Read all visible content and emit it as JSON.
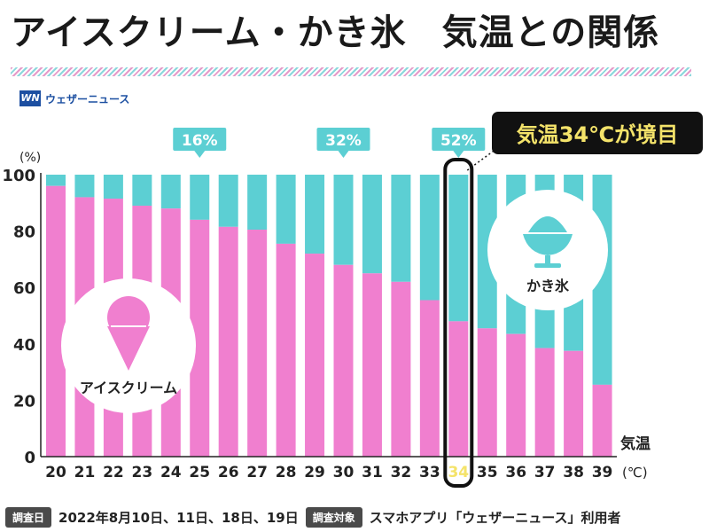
{
  "page": {
    "title_part1": "アイスクリーム・かき氷",
    "title_part2": "気温との関係",
    "logo_mark": "WN",
    "logo_text": "ウェザーニュース",
    "footer": {
      "date_tag": "調査日",
      "date_value": "2022年8月10日、11日、18日、19日",
      "target_tag": "調査対象",
      "target_value": "スマホアプリ「ウェザーニュース」利用者"
    },
    "ice_cream_label": "アイスクリーム",
    "kakigori_label": "かき氷",
    "callout": "気温34℃が境目"
  },
  "chart_data": {
    "type": "bar",
    "stacked": true,
    "categories": [
      "20",
      "21",
      "22",
      "23",
      "24",
      "25",
      "26",
      "27",
      "28",
      "29",
      "30",
      "31",
      "32",
      "33",
      "34",
      "35",
      "36",
      "37",
      "38",
      "39"
    ],
    "series": [
      {
        "name": "アイスクリーム",
        "color": "#f07fcf",
        "values": [
          96,
          92,
          91.5,
          89,
          88,
          84,
          81.5,
          80.5,
          75.5,
          72,
          68,
          65,
          62,
          55.5,
          48,
          45.5,
          43.5,
          38.5,
          37.5,
          25.5
        ]
      },
      {
        "name": "かき氷",
        "color": "#5ccfd3",
        "values": [
          4,
          8,
          8.5,
          11,
          12,
          16,
          18.5,
          19.5,
          24.5,
          28,
          32,
          35,
          38,
          44.5,
          52,
          54.5,
          56.5,
          61.5,
          62.5,
          74.5
        ]
      }
    ],
    "ylim": [
      0,
      100
    ],
    "yticks": [
      0,
      20,
      40,
      60,
      80,
      100
    ],
    "ylabel": "(%)",
    "xlabel_line1": "気温",
    "xlabel_line2": "(℃)",
    "highlight_category": "34",
    "annotations": [
      {
        "category": "25",
        "text": "16%"
      },
      {
        "category": "30",
        "text": "32%"
      },
      {
        "category": "34",
        "text": "52%"
      }
    ]
  }
}
